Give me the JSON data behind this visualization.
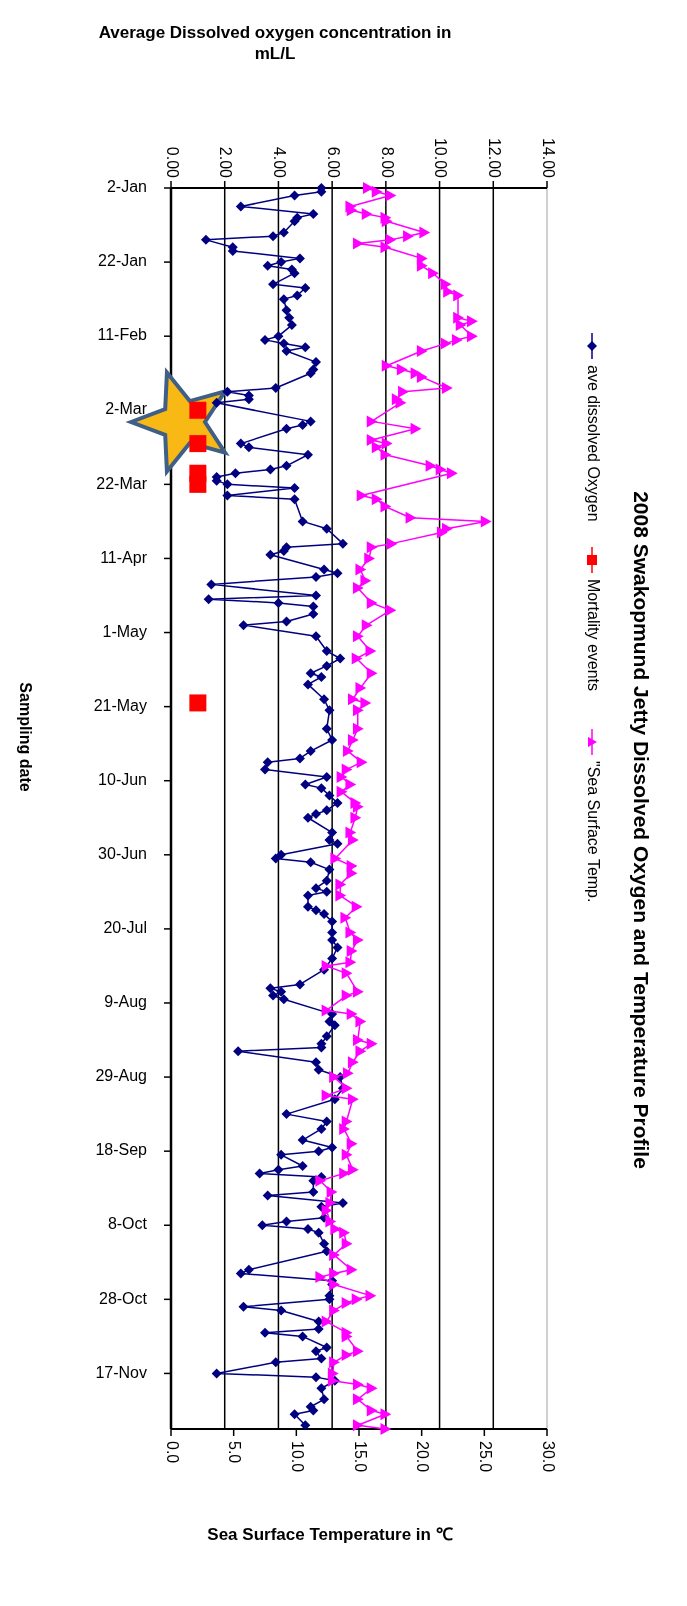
{
  "chart_data": {
    "type": "line",
    "title": "2008 Swakopmund Jetty Dissolved Oxygen and Temperature Profile",
    "orientation": "horizontal",
    "ylabel": "Sampling date",
    "xlabel": "Average Dissolved oxygen concentration in mL/L",
    "x2label": "Sea Surface Temperature in ℃",
    "ylim": [
      "2008-12-02",
      "2008-01-02"
    ],
    "yticks": [
      {
        "value": "2008-01-02",
        "label": "2-Jan"
      },
      {
        "value": "2008-01-22",
        "label": "22-Jan"
      },
      {
        "value": "2008-02-11",
        "label": "11-Feb"
      },
      {
        "value": "2008-03-02",
        "label": "2-Mar"
      },
      {
        "value": "2008-03-22",
        "label": "22-Mar"
      },
      {
        "value": "2008-04-11",
        "label": "11-Apr"
      },
      {
        "value": "2008-05-01",
        "label": "1-May"
      },
      {
        "value": "2008-05-21",
        "label": "21-May"
      },
      {
        "value": "2008-06-10",
        "label": "10-Jun"
      },
      {
        "value": "2008-06-30",
        "label": "30-Jun"
      },
      {
        "value": "2008-07-20",
        "label": "20-Jul"
      },
      {
        "value": "2008-08-09",
        "label": "9-Aug"
      },
      {
        "value": "2008-08-29",
        "label": "29-Aug"
      },
      {
        "value": "2008-09-18",
        "label": "18-Sep"
      },
      {
        "value": "2008-10-08",
        "label": "8-Oct"
      },
      {
        "value": "2008-10-28",
        "label": "28-Oct"
      },
      {
        "value": "2008-11-17",
        "label": "17-Nov"
      }
    ],
    "xlim": [
      0,
      14
    ],
    "xticks": [
      {
        "value": 0,
        "label": "0.00"
      },
      {
        "value": 2,
        "label": "2.00"
      },
      {
        "value": 4,
        "label": "4.00"
      },
      {
        "value": 6,
        "label": "6.00"
      },
      {
        "value": 8,
        "label": "8.00"
      },
      {
        "value": 10,
        "label": "10.00"
      },
      {
        "value": 12,
        "label": "12.00"
      },
      {
        "value": 14,
        "label": "14.00"
      }
    ],
    "x2lim": [
      0,
      30
    ],
    "x2ticks": [
      {
        "value": 0,
        "label": "0.0"
      },
      {
        "value": 5,
        "label": "5.0"
      },
      {
        "value": 10,
        "label": "10.0"
      },
      {
        "value": 15,
        "label": "15.0"
      },
      {
        "value": 20,
        "label": "20.0"
      },
      {
        "value": 25,
        "label": "25.0"
      },
      {
        "value": 30,
        "label": "30.0"
      }
    ],
    "grid": "x",
    "legend": "right",
    "series": [
      {
        "name": "ave dissolved Oxygen",
        "color": "#000080",
        "marker": "diamond",
        "x": [
          "2008-01-02",
          "2008-01-03",
          "2008-01-04",
          "2008-01-07",
          "2008-01-09",
          "2008-01-10",
          "2008-01-11",
          "2008-01-14",
          "2008-01-15",
          "2008-01-16",
          "2008-01-18",
          "2008-01-19",
          "2008-01-21",
          "2008-01-22",
          "2008-01-23",
          "2008-01-24",
          "2008-01-25",
          "2008-01-28",
          "2008-01-29",
          "2008-01-31",
          "2008-02-01",
          "2008-02-04",
          "2008-02-06",
          "2008-02-08",
          "2008-02-11",
          "2008-02-12",
          "2008-02-13",
          "2008-02-14",
          "2008-02-15",
          "2008-02-18",
          "2008-02-20",
          "2008-02-21",
          "2008-02-25",
          "2008-02-26",
          "2008-02-27",
          "2008-02-28",
          "2008-02-29",
          "2008-03-05",
          "2008-03-06",
          "2008-03-07",
          "2008-03-11",
          "2008-03-12",
          "2008-03-14",
          "2008-03-17",
          "2008-03-18",
          "2008-03-19",
          "2008-03-20",
          "2008-03-21",
          "2008-03-22",
          "2008-03-23",
          "2008-03-25",
          "2008-03-26",
          "2008-04-01",
          "2008-04-03",
          "2008-04-07",
          "2008-04-08",
          "2008-04-09",
          "2008-04-10",
          "2008-04-14",
          "2008-04-15",
          "2008-04-16",
          "2008-04-18",
          "2008-04-21",
          "2008-04-22",
          "2008-04-23",
          "2008-04-24",
          "2008-04-26",
          "2008-04-28",
          "2008-04-29",
          "2008-05-02",
          "2008-05-06",
          "2008-05-08",
          "2008-05-10",
          "2008-05-12",
          "2008-05-13",
          "2008-05-15",
          "2008-05-19",
          "2008-05-22",
          "2008-05-27",
          "2008-05-30",
          "2008-06-02",
          "2008-06-04",
          "2008-06-05",
          "2008-06-07",
          "2008-06-09",
          "2008-06-11",
          "2008-06-12",
          "2008-06-14",
          "2008-06-16",
          "2008-06-18",
          "2008-06-19",
          "2008-06-20",
          "2008-06-24",
          "2008-06-26",
          "2008-06-27",
          "2008-06-30",
          "2008-07-01",
          "2008-07-02",
          "2008-07-04",
          "2008-07-07",
          "2008-07-09",
          "2008-07-10",
          "2008-07-11",
          "2008-07-14",
          "2008-07-15",
          "2008-07-16",
          "2008-07-18",
          "2008-07-21",
          "2008-07-23",
          "2008-07-25",
          "2008-07-28",
          "2008-07-31",
          "2008-08-04",
          "2008-08-05",
          "2008-08-06",
          "2008-08-07",
          "2008-08-08",
          "2008-08-12",
          "2008-08-14",
          "2008-08-15",
          "2008-08-18",
          "2008-08-20",
          "2008-08-21",
          "2008-08-22",
          "2008-08-25",
          "2008-08-27",
          "2008-08-29",
          "2008-09-01",
          "2008-09-04",
          "2008-09-08",
          "2008-09-10",
          "2008-09-12",
          "2008-09-15",
          "2008-09-17",
          "2008-09-18",
          "2008-09-19",
          "2008-09-22",
          "2008-09-23",
          "2008-09-24",
          "2008-09-25",
          "2008-09-26",
          "2008-09-29",
          "2008-09-30",
          "2008-10-02",
          "2008-10-03",
          "2008-10-06",
          "2008-10-07",
          "2008-10-08",
          "2008-10-09",
          "2008-10-10",
          "2008-10-13",
          "2008-10-15",
          "2008-10-20",
          "2008-10-21",
          "2008-10-23",
          "2008-10-24",
          "2008-10-27",
          "2008-10-28",
          "2008-10-30",
          "2008-10-31",
          "2008-11-03",
          "2008-11-05",
          "2008-11-06",
          "2008-11-07",
          "2008-11-10",
          "2008-11-11",
          "2008-11-13",
          "2008-11-14",
          "2008-11-17",
          "2008-11-18",
          "2008-11-19",
          "2008-11-21",
          "2008-11-24",
          "2008-11-26",
          "2008-11-27",
          "2008-11-28",
          "2008-12-01"
        ],
        "values": [
          5.6,
          5.6,
          4.6,
          2.6,
          5.3,
          4.7,
          4.6,
          4.2,
          3.8,
          1.3,
          2.3,
          2.3,
          4.8,
          4.1,
          3.6,
          4.5,
          4.6,
          3.8,
          5.0,
          4.7,
          4.2,
          4.3,
          4.4,
          4.5,
          4.0,
          3.5,
          4.2,
          5.0,
          4.3,
          5.4,
          5.3,
          5.2,
          3.9,
          2.1,
          2.9,
          2.9,
          1.7,
          5.2,
          4.9,
          4.3,
          2.6,
          2.9,
          5.1,
          4.3,
          3.7,
          2.4,
          1.7,
          1.7,
          2.1,
          4.6,
          2.1,
          4.6,
          4.9,
          5.8,
          6.4,
          4.3,
          4.2,
          3.7,
          5.7,
          6.2,
          5.4,
          1.5,
          5.4,
          1.4,
          4.0,
          5.3,
          5.3,
          4.3,
          2.7,
          5.4,
          5.8,
          6.3,
          5.8,
          5.2,
          5.6,
          5.1,
          5.7,
          5.9,
          5.8,
          6.0,
          5.2,
          4.8,
          3.6,
          3.5,
          5.8,
          5.0,
          5.6,
          5.9,
          6.2,
          5.8,
          5.4,
          5.1,
          6.0,
          5.9,
          6.2,
          4.1,
          3.9,
          5.2,
          5.9,
          5.8,
          5.4,
          5.8,
          5.1,
          5.1,
          5.4,
          5.7,
          6.0,
          6.0,
          6.0,
          6.2,
          6.0,
          5.7,
          4.8,
          3.7,
          4.1,
          3.8,
          4.2,
          6.0,
          5.9,
          6.1,
          5.8,
          5.6,
          5.6,
          2.5,
          5.4,
          5.5,
          6.3,
          6.4,
          6.1,
          4.3,
          5.8,
          5.6,
          4.9,
          6.0,
          5.5,
          4.1,
          4.9,
          4.0,
          3.3,
          5.6,
          5.3,
          5.3,
          3.6,
          6.4,
          5.6,
          5.7,
          4.3,
          3.4,
          5.1,
          5.5,
          5.7,
          5.8,
          2.9,
          2.6,
          6.0,
          6.0,
          5.9,
          5.9,
          2.7,
          4.1,
          5.5,
          5.5,
          3.5,
          4.9,
          5.8,
          5.4,
          5.6,
          3.9,
          1.7,
          5.4,
          6.1,
          5.6,
          5.7,
          5.2,
          5.3,
          4.6,
          5.0
        ]
      },
      {
        "name": "Mortality events",
        "type": "scatter",
        "color": "#ff0000",
        "marker": "square",
        "x": [
          "2008-03-02",
          "2008-03-11",
          "2008-03-19",
          "2008-03-22",
          "2008-05-20"
        ],
        "values": [
          1.0,
          1.0,
          1.0,
          1.0,
          1.0
        ]
      },
      {
        "name": "\"Sea Surface Temp.",
        "axis": "x2",
        "color": "#ff00ff",
        "marker": "triangle",
        "x": [
          "2008-01-02",
          "2008-01-03",
          "2008-01-04",
          "2008-01-07",
          "2008-01-08",
          "2008-01-09",
          "2008-01-10",
          "2008-01-11",
          "2008-01-14",
          "2008-01-15",
          "2008-01-16",
          "2008-01-17",
          "2008-01-18",
          "2008-01-21",
          "2008-01-23",
          "2008-01-25",
          "2008-01-28",
          "2008-01-30",
          "2008-01-31",
          "2008-02-06",
          "2008-02-07",
          "2008-02-08",
          "2008-02-11",
          "2008-02-12",
          "2008-02-13",
          "2008-02-15",
          "2008-02-19",
          "2008-02-20",
          "2008-02-21",
          "2008-02-22",
          "2008-02-25",
          "2008-02-26",
          "2008-02-28",
          "2008-02-29",
          "2008-03-05",
          "2008-03-07",
          "2008-03-10",
          "2008-03-11",
          "2008-03-12",
          "2008-03-14",
          "2008-03-17",
          "2008-03-18",
          "2008-03-19",
          "2008-03-25",
          "2008-03-26",
          "2008-03-28",
          "2008-03-31",
          "2008-04-01",
          "2008-04-03",
          "2008-04-04",
          "2008-04-07",
          "2008-04-08",
          "2008-04-11",
          "2008-04-14",
          "2008-04-17",
          "2008-04-19",
          "2008-04-23",
          "2008-04-25",
          "2008-04-29",
          "2008-05-02",
          "2008-05-06",
          "2008-05-08",
          "2008-05-12",
          "2008-05-16",
          "2008-05-19",
          "2008-05-20",
          "2008-05-22",
          "2008-05-27",
          "2008-05-30",
          "2008-06-02",
          "2008-06-05",
          "2008-06-07",
          "2008-06-09",
          "2008-06-11",
          "2008-06-13",
          "2008-06-16",
          "2008-06-17",
          "2008-06-20",
          "2008-06-24",
          "2008-06-26",
          "2008-07-01",
          "2008-07-03",
          "2008-07-05",
          "2008-07-08",
          "2008-07-11",
          "2008-07-14",
          "2008-07-17",
          "2008-07-21",
          "2008-07-23",
          "2008-07-26",
          "2008-07-29",
          "2008-07-30",
          "2008-08-01",
          "2008-08-06",
          "2008-08-07",
          "2008-08-11",
          "2008-08-12",
          "2008-08-14",
          "2008-08-19",
          "2008-08-20",
          "2008-08-22",
          "2008-08-25",
          "2008-08-28",
          "2008-08-29",
          "2008-09-01",
          "2008-09-03",
          "2008-09-04",
          "2008-09-10",
          "2008-09-12",
          "2008-09-16",
          "2008-09-19",
          "2008-09-23",
          "2008-09-24",
          "2008-09-26",
          "2008-09-29",
          "2008-10-02",
          "2008-10-04",
          "2008-10-07",
          "2008-10-09",
          "2008-10-10",
          "2008-10-13",
          "2008-10-16",
          "2008-10-20",
          "2008-10-21",
          "2008-10-22",
          "2008-10-24",
          "2008-10-27",
          "2008-10-28",
          "2008-10-29",
          "2008-10-31",
          "2008-11-03",
          "2008-11-06",
          "2008-11-07",
          "2008-11-11",
          "2008-11-12",
          "2008-11-14",
          "2008-11-17",
          "2008-11-19",
          "2008-11-20",
          "2008-11-21",
          "2008-11-24",
          "2008-11-27",
          "2008-11-28",
          "2008-12-01",
          "2008-12-02"
        ],
        "values": [
          15.7,
          16.4,
          17.5,
          14.3,
          14.4,
          15.6,
          17.1,
          17.2,
          20.2,
          18.9,
          17.5,
          14.9,
          17.1,
          20.0,
          20.0,
          20.9,
          21.9,
          22.1,
          22.9,
          22.9,
          24.0,
          23.1,
          24.0,
          22.8,
          21.9,
          20.0,
          17.2,
          18.4,
          19.5,
          20.0,
          22.0,
          18.5,
          18.0,
          18.3,
          16.0,
          19.5,
          16.0,
          17.2,
          16.4,
          17.1,
          20.7,
          21.5,
          22.4,
          15.2,
          16.4,
          17.1,
          19.1,
          25.1,
          22.0,
          21.6,
          17.6,
          16.0,
          15.8,
          15.1,
          15.5,
          14.9,
          16.0,
          17.5,
          15.6,
          14.9,
          15.9,
          14.8,
          16.0,
          15.1,
          14.5,
          15.5,
          14.9,
          14.9,
          14.5,
          14.1,
          15.2,
          14.0,
          13.6,
          14.3,
          13.6,
          14.7,
          14.9,
          14.7,
          14.3,
          14.5,
          13.1,
          14.4,
          14.4,
          13.5,
          13.5,
          14.8,
          13.9,
          14.3,
          14.9,
          14.4,
          14.3,
          12.4,
          14.0,
          14.9,
          14.0,
          12.4,
          14.4,
          15.1,
          14.9,
          16.0,
          15.1,
          14.5,
          14.1,
          13.0,
          14.0,
          12.4,
          14.5,
          14.0,
          13.8,
          14.4,
          14.0,
          14.5,
          13.8,
          11.9,
          12.8,
          12.7,
          12.4,
          12.7,
          13.1,
          13.8,
          14.0,
          13.0,
          14.4,
          13.0,
          11.9,
          13.0,
          15.9,
          14.8,
          14.0,
          13.0,
          12.4,
          14.0,
          14.0,
          14.9,
          14.0,
          13.0,
          12.9,
          12.9,
          14.9,
          16.0,
          14.9,
          16.0,
          17.1,
          14.9,
          17.1
        ]
      }
    ]
  }
}
